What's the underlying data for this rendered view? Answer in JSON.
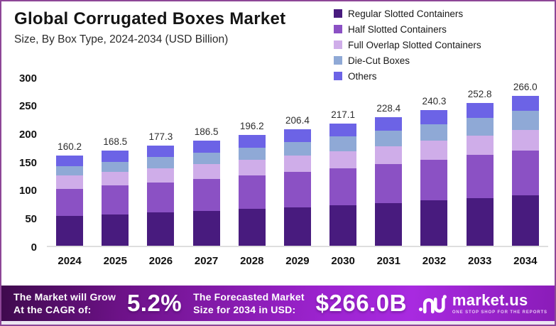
{
  "header": {
    "title": "Global Corrugated Boxes Market",
    "subtitle": "Size, By Box Type, 2024-2034 (USD Billion)"
  },
  "chart_data": {
    "type": "bar",
    "stacked": true,
    "title": "Global Corrugated Boxes Market Size, By Box Type, 2024-2034 (USD Billion)",
    "unit": "USD Billion",
    "categories": [
      "2024",
      "2025",
      "2026",
      "2027",
      "2028",
      "2029",
      "2030",
      "2031",
      "2032",
      "2033",
      "2034"
    ],
    "totals": [
      160.2,
      168.5,
      177.3,
      186.5,
      196.2,
      206.4,
      217.1,
      228.4,
      240.3,
      252.8,
      266.0
    ],
    "series": [
      {
        "name": "Regular Slotted Containers",
        "color": "#481b7e",
        "values": [
          52.8,
          55.6,
          58.7,
          61.8,
          65.1,
          68.5,
          72.3,
          76.2,
          80.4,
          84.7,
          89.3
        ]
      },
      {
        "name": "Half Slotted Containers",
        "color": "#8b51c4",
        "values": [
          48.5,
          51.0,
          53.6,
          56.4,
          59.3,
          62.4,
          65.6,
          69.0,
          72.5,
          76.2,
          80.2
        ]
      },
      {
        "name": "Full Overlap Slotted Containers",
        "color": "#cfаde9",
        "values": [
          23.2,
          24.2,
          25.4,
          26.5,
          27.7,
          29.0,
          30.3,
          31.7,
          33.1,
          34.6,
          36.2
        ]
      },
      {
        "name": "Die-Cut Boxes",
        "color": "#8fa9d6",
        "values": [
          16.8,
          18.0,
          19.3,
          20.7,
          22.2,
          23.8,
          25.4,
          27.2,
          29.1,
          31.1,
          33.3
        ]
      },
      {
        "name": "Others",
        "color": "#6c63e6",
        "values": [
          18.9,
          19.7,
          20.3,
          21.1,
          21.9,
          22.7,
          23.5,
          24.3,
          25.2,
          26.2,
          27.0
        ]
      }
    ],
    "ylim": [
      0,
      300
    ],
    "yticks": [
      0,
      50,
      100,
      150,
      200,
      250,
      300
    ],
    "grid": false,
    "legend_position": "top-right"
  },
  "banner": {
    "cagr_line1": "The Market will Grow",
    "cagr_line2": "At the CAGR of:",
    "cagr_value": "5.2%",
    "forecast_line1": "The Forecasted Market",
    "forecast_line2": "Size for 2034 in USD:",
    "forecast_value": "$266.0B",
    "logo_text": "market.us",
    "logo_tagline": "ONE STOP SHOP FOR THE REPORTS"
  }
}
